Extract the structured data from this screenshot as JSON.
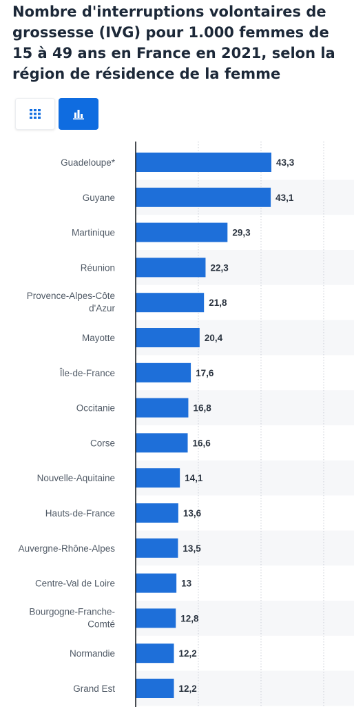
{
  "header": {
    "title": "Nombre d'interruptions volontaires de grossesse (IVG) pour 1.000 femmes de 15 à 49 ans en France en 2021, selon la région de résidence de la femme"
  },
  "view_toggle": {
    "table_icon": "grid-icon",
    "chart_icon": "bar-chart-icon",
    "active": "chart",
    "active_color": "#0f6ce0"
  },
  "chart_data": {
    "type": "bar",
    "orientation": "horizontal",
    "categories": [
      "Guadeloupe*",
      "Guyane",
      "Martinique",
      "Réunion",
      "Provence-Alpes-Côte d'Azur",
      "Mayotte",
      "Île-de-France",
      "Occitanie",
      "Corse",
      "Nouvelle-Aquitaine",
      "Hauts-de-France",
      "Auvergne-Rhône-Alpes",
      "Centre-Val de Loire",
      "Bourgogne-Franche-Comté",
      "Normandie",
      "Grand Est"
    ],
    "values": [
      43.3,
      43.1,
      29.3,
      22.3,
      21.8,
      20.4,
      17.6,
      16.8,
      16.6,
      14.1,
      13.6,
      13.5,
      13,
      12.8,
      12.2,
      12.2
    ],
    "value_labels": [
      "43,3",
      "43,1",
      "29,3",
      "22,3",
      "21,8",
      "20,4",
      "17,6",
      "16,8",
      "16,6",
      "14,1",
      "13,6",
      "13,5",
      "13",
      "12,8",
      "12,2",
      "12,2"
    ],
    "xlim": [
      0,
      60
    ],
    "gridlines": [
      20,
      40,
      60
    ],
    "grid": true,
    "bar_color": "#1e6fd9",
    "stripe_color": "#f6f7f9",
    "title": "Nombre d'interruptions volontaires de grossesse (IVG) pour 1.000 femmes de 15 à 49 ans en France en 2021, selon la région de résidence de la femme",
    "xlabel": "",
    "ylabel": ""
  }
}
